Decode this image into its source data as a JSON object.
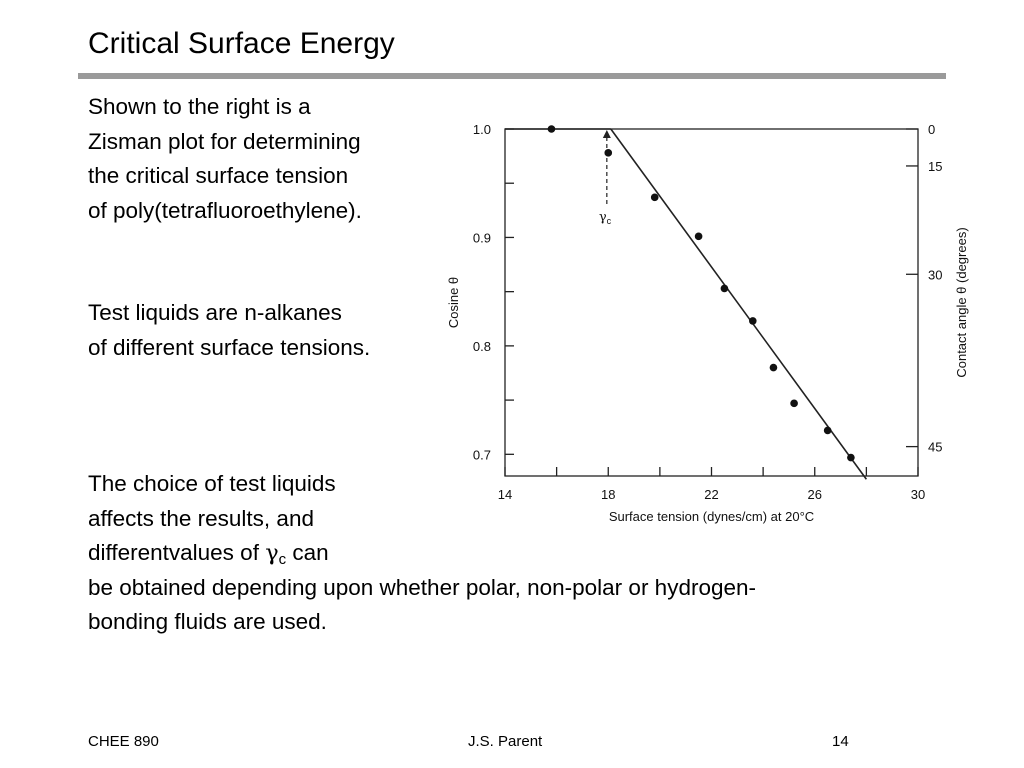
{
  "slide": {
    "title": "Critical Surface Energy",
    "paragraph1": [
      "Shown to the right is a",
      "Zisman plot for determining",
      "the critical surface tension",
      "of poly(tetrafluoroethylene)."
    ],
    "paragraph2": [
      "Test liquids are n-alkanes",
      "of different surface tensions."
    ],
    "paragraph3": {
      "line1": "The choice of test liquids",
      "line2": "affects the results, and",
      "line3_prefix": "differentvalues of ",
      "gamma_symbol": "γ",
      "gamma_subscript": "c",
      "line3_suffix": " can",
      "line4": "be obtained depending upon whether polar, non-polar or hydrogen-",
      "line5": "bonding fluids are used."
    }
  },
  "footer": {
    "left": "CHEE 890",
    "center": "J.S. Parent",
    "right": "14"
  },
  "chart_data": {
    "type": "scatter",
    "xlabel": "Surface tension (dynes/cm) at 20°C",
    "ylabel_left": "Cosine θ",
    "ylabel_right": "Contact angle θ (degrees)",
    "xlim": [
      14,
      30
    ],
    "ylim": [
      0.68,
      1.0
    ],
    "x_ticks": [
      14,
      18,
      22,
      26,
      30
    ],
    "y_ticks_left": [
      1.0,
      0.9,
      0.8,
      0.7
    ],
    "y_ticks_left_labels": [
      "1.0",
      "0.9",
      "0.8",
      "0.7"
    ],
    "y_ticks_right": [
      0,
      15,
      30,
      45
    ],
    "series": [
      {
        "points": [
          {
            "x": 15.8,
            "y": 1.0
          },
          {
            "x": 18.0,
            "y": 0.978
          },
          {
            "x": 19.8,
            "y": 0.937
          },
          {
            "x": 21.5,
            "y": 0.901
          },
          {
            "x": 22.5,
            "y": 0.853
          },
          {
            "x": 23.6,
            "y": 0.823
          },
          {
            "x": 24.4,
            "y": 0.78
          },
          {
            "x": 25.2,
            "y": 0.747
          },
          {
            "x": 26.5,
            "y": 0.722
          },
          {
            "x": 27.4,
            "y": 0.697
          }
        ]
      }
    ],
    "fit_line": {
      "x": [
        18.1,
        28.0
      ],
      "y": [
        1.0,
        0.677
      ]
    },
    "plateau": {
      "x": [
        14,
        18.1
      ],
      "y": [
        1.0,
        1.0
      ]
    },
    "annotation": {
      "symbol": "γ",
      "subscript": "c",
      "x": 18.1
    }
  }
}
